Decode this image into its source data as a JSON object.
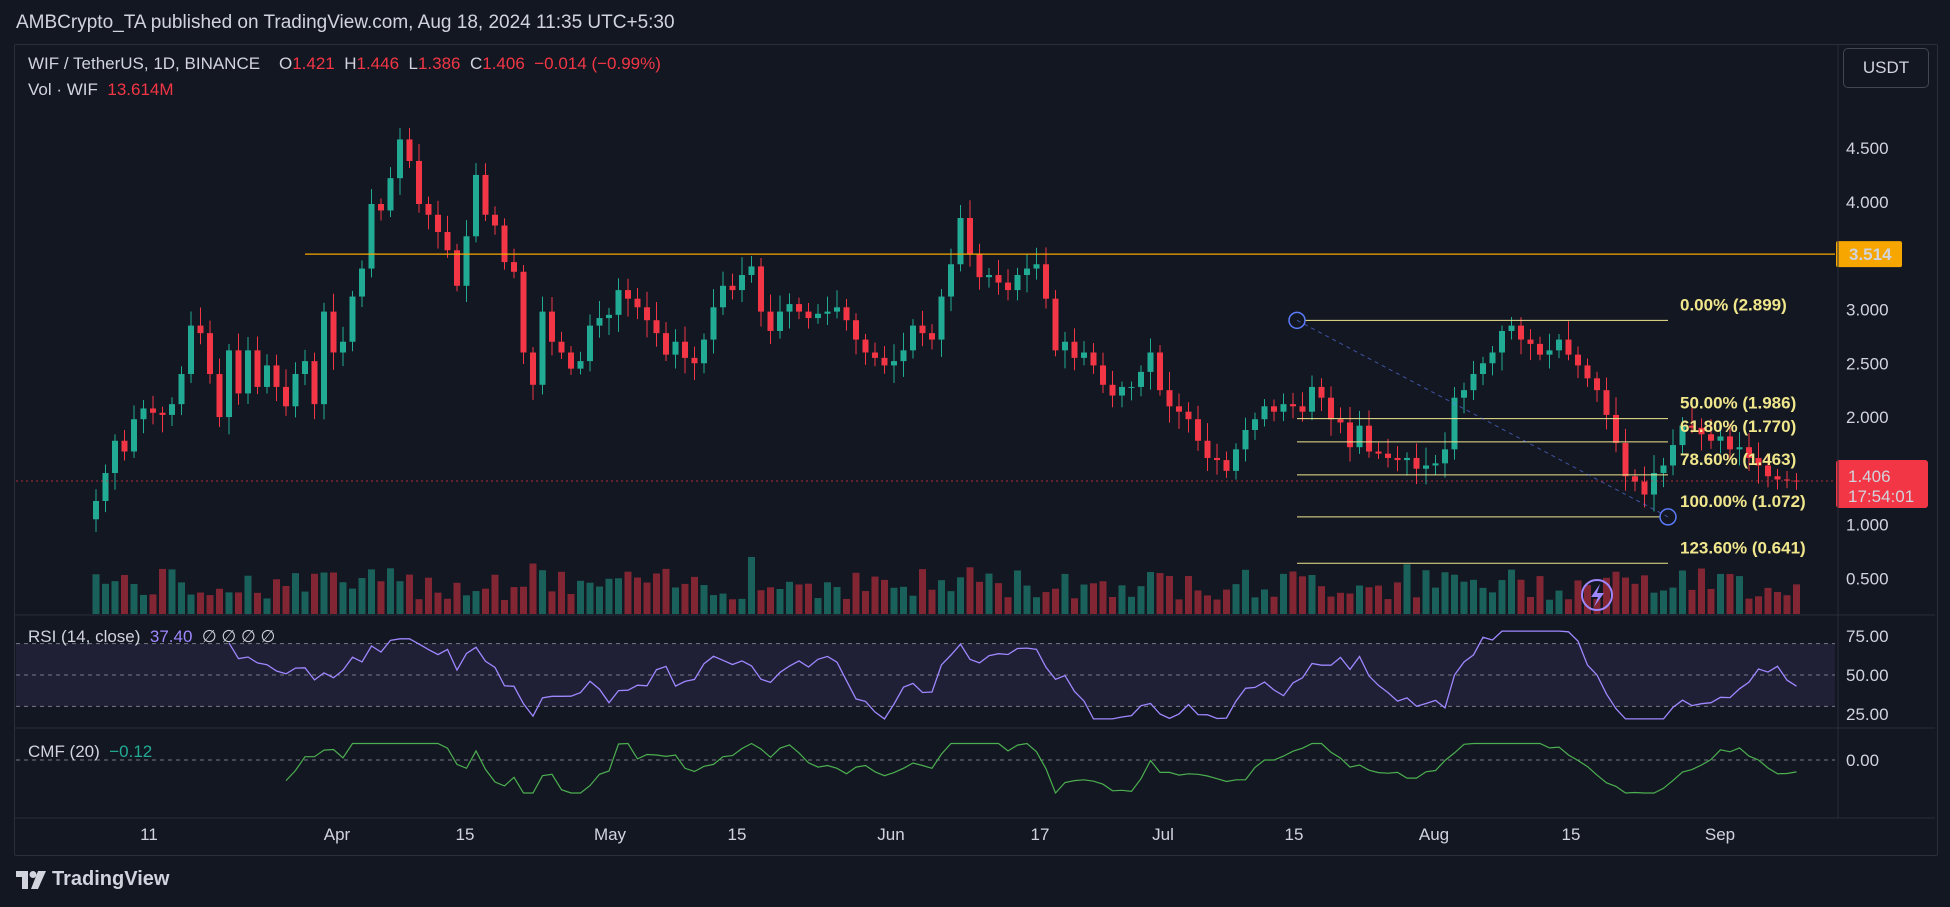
{
  "header": {
    "published": "AMBCrypto_TA published on TradingView.com, Aug 18, 2024 11:35 UTC+5:30"
  },
  "legend": {
    "symbol": "WIF / TetherUS, 1D, BINANCE",
    "o_label": "O",
    "o_value": "1.421",
    "h_label": "H",
    "h_value": "1.446",
    "l_label": "L",
    "l_value": "1.386",
    "c_label": "C",
    "c_value": "1.406",
    "change": "−0.014 (−0.99%)",
    "vol_label": "Vol · WIF",
    "vol_value": "13.614M",
    "rsi_label": "RSI (14, close)",
    "rsi_value": "37.40",
    "rsi_extra": "∅ ∅ ∅ ∅",
    "cmf_label": "CMF (20)",
    "cmf_value": "−0.12"
  },
  "currency_button": "USDT",
  "price_tag": {
    "price": "1.406",
    "countdown": "17:54:01"
  },
  "level_tag": "3.514",
  "footer": {
    "brand": "TradingView"
  },
  "colors": {
    "up": "#22ab94",
    "down": "#f23645",
    "level": "#f7a600",
    "fib": "#f0e68c",
    "rsi": "#9e87ff",
    "cmf": "#4caf50",
    "background": "#131722"
  },
  "chart_data": {
    "type": "candlestick",
    "title": "WIF / TetherUS, 1D, BINANCE",
    "x_ticks": [
      "11",
      "Apr",
      "15",
      "May",
      "15",
      "Jun",
      "17",
      "Jul",
      "15",
      "Aug",
      "15",
      "Sep"
    ],
    "y_ticks": [
      "4.500",
      "4.000",
      "3.500",
      "3.000",
      "2.500",
      "2.000",
      "1.500",
      "1.000",
      "0.500"
    ],
    "ylim": [
      0.3,
      4.9
    ],
    "horizontal_level": 3.514,
    "fibonacci": [
      {
        "label": "0.00% (2.899)",
        "value": 2.899
      },
      {
        "label": "50.00% (1.986)",
        "value": 1.986
      },
      {
        "label": "61.80% (1.770)",
        "value": 1.77
      },
      {
        "label": "78.60% (1.463)",
        "value": 1.463
      },
      {
        "label": "100.00% (1.072)",
        "value": 1.072
      },
      {
        "label": "123.60% (0.641)",
        "value": 0.641
      }
    ],
    "closes": [
      1.22,
      1.48,
      1.78,
      1.68,
      1.98,
      2.08,
      2.04,
      2.02,
      2.12,
      2.4,
      2.85,
      2.78,
      2.4,
      2.0,
      2.62,
      2.22,
      2.62,
      2.28,
      2.48,
      2.28,
      2.1,
      2.4,
      2.52,
      2.12,
      2.98,
      2.6,
      2.7,
      3.12,
      3.38,
      3.98,
      3.92,
      4.22,
      4.58,
      4.38,
      3.98,
      3.88,
      3.72,
      3.55,
      3.22,
      3.68,
      4.25,
      3.88,
      3.78,
      3.44,
      3.35,
      2.6,
      2.3,
      2.98,
      2.7,
      2.6,
      2.45,
      2.52,
      2.85,
      2.92,
      2.95,
      3.18,
      3.1,
      3.02,
      2.9,
      2.78,
      2.58,
      2.7,
      2.55,
      2.5,
      2.72,
      3.02,
      3.22,
      3.18,
      3.32,
      3.4,
      2.98,
      2.8,
      2.98,
      3.05,
      2.98,
      2.92,
      2.96,
      2.98,
      3.02,
      2.9,
      2.72,
      2.6,
      2.55,
      2.48,
      2.52,
      2.62,
      2.85,
      2.78,
      2.72,
      3.12,
      3.42,
      3.85,
      3.52,
      3.3,
      3.32,
      3.25,
      3.18,
      3.32,
      3.38,
      3.42,
      3.1,
      2.62,
      2.7,
      2.55,
      2.6,
      2.48,
      2.3,
      2.2,
      2.28,
      2.28,
      2.42,
      2.6,
      2.25,
      2.1,
      2.05,
      1.98,
      1.78,
      1.62,
      1.6,
      1.5,
      1.7,
      1.88,
      1.98,
      2.1,
      2.05,
      2.12,
      2.1,
      2.05,
      2.28,
      2.18,
      1.98,
      1.95,
      1.72,
      1.92,
      1.68,
      1.66,
      1.62,
      1.6,
      1.62,
      1.52,
      1.55,
      1.57,
      1.7,
      2.18,
      2.25,
      2.4,
      2.5,
      2.6,
      2.8,
      2.85,
      2.72,
      2.68,
      2.58,
      2.62,
      2.72,
      2.58,
      2.48,
      2.36,
      2.25,
      2.02,
      1.76,
      1.45,
      1.4,
      1.28,
      1.48,
      1.55,
      1.74,
      1.92,
      1.9,
      1.84,
      1.78,
      1.82,
      1.7,
      1.72,
      1.62,
      1.55,
      1.45,
      1.42,
      1.41,
      1.406
    ],
    "rsi": {
      "ylim": [
        20,
        80
      ],
      "y_ticks": [
        "75.00",
        "50.00",
        "25.00"
      ],
      "band": [
        30,
        70
      ],
      "last": 37.4
    },
    "cmf": {
      "y_ticks": [
        "0.00"
      ],
      "last": -0.12
    }
  }
}
